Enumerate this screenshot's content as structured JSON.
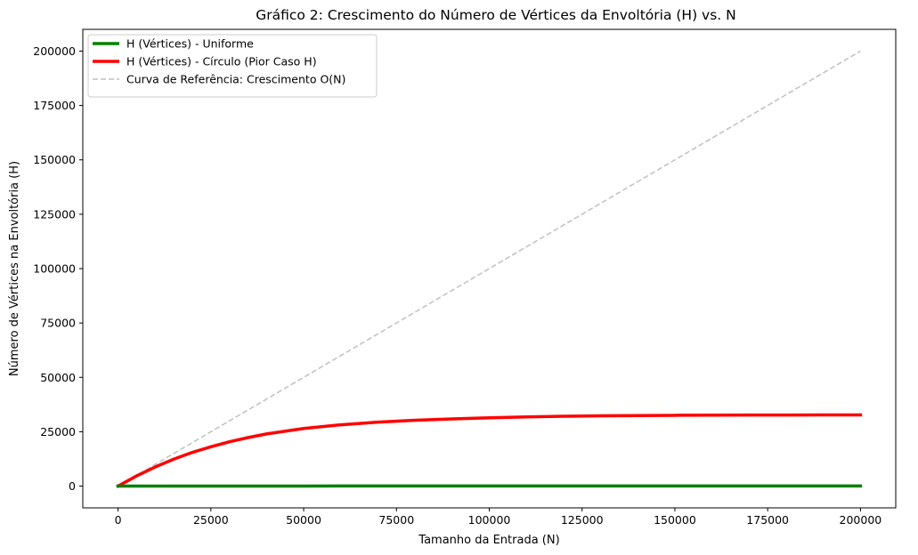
{
  "chart_data": {
    "type": "line",
    "title": "Gráfico 2: Crescimento do Número de Vértices da Envoltória (H) vs. N",
    "xlabel": "Tamanho da Entrada (N)",
    "ylabel": "Número de Vértices na Envoltória (H)",
    "xlim": [
      -9500,
      209500
    ],
    "ylim": [
      -10000,
      210000
    ],
    "xticks": [
      0,
      25000,
      50000,
      75000,
      100000,
      125000,
      150000,
      175000,
      200000
    ],
    "xtick_labels": [
      "0",
      "25000",
      "50000",
      "75000",
      "100000",
      "125000",
      "150000",
      "175000",
      "200000"
    ],
    "yticks": [
      0,
      25000,
      50000,
      75000,
      100000,
      125000,
      150000,
      175000,
      200000
    ],
    "ytick_labels": [
      "0",
      "25000",
      "50000",
      "75000",
      "100000",
      "125000",
      "150000",
      "175000",
      "200000"
    ],
    "grid": false,
    "legend_position": "top-left",
    "series": [
      {
        "name": "H (Vértices) - Uniforme",
        "color": "#008000",
        "style": "solid",
        "x": [
          0,
          25000,
          50000,
          75000,
          100000,
          125000,
          150000,
          175000,
          200000
        ],
        "y": [
          0,
          40,
          45,
          48,
          50,
          52,
          53,
          54,
          55
        ]
      },
      {
        "name": "H (Vértices) - Círculo (Pior Caso H)",
        "color": "#ff0000",
        "style": "solid",
        "x": [
          0,
          5000,
          10000,
          15000,
          20000,
          25000,
          30000,
          35000,
          40000,
          50000,
          60000,
          70000,
          80000,
          90000,
          100000,
          110000,
          120000,
          130000,
          140000,
          150000,
          160000,
          170000,
          180000,
          190000,
          200000
        ],
        "y": [
          0,
          4700,
          8800,
          12400,
          15500,
          18100,
          20400,
          22300,
          24000,
          26500,
          28200,
          29400,
          30300,
          30900,
          31400,
          31800,
          32100,
          32300,
          32450,
          32550,
          32620,
          32670,
          32700,
          32720,
          32740
        ]
      },
      {
        "name": "Curva de Referência: Crescimento O(N)",
        "color": "#c0c0c0",
        "style": "dashed",
        "x": [
          0,
          200000
        ],
        "y": [
          0,
          200000
        ]
      }
    ]
  }
}
